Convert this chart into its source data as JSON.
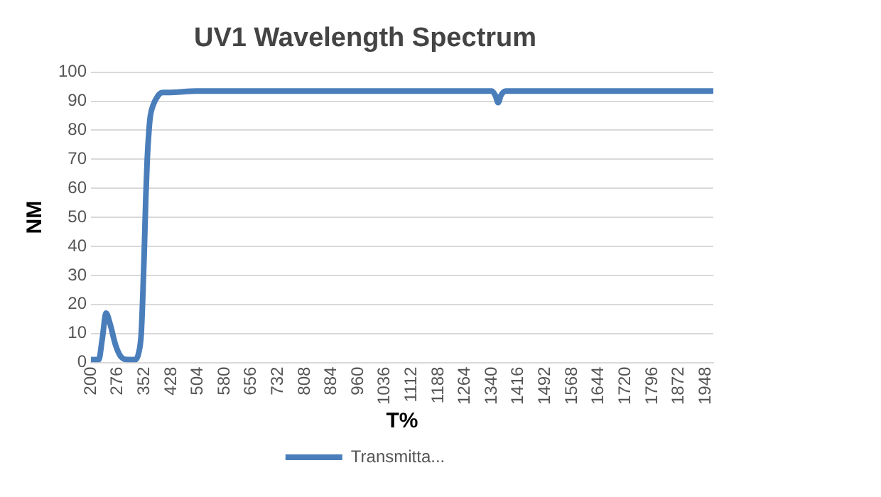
{
  "chart_data": {
    "type": "line",
    "title": "UV1 Wavelength Spectrum",
    "xlabel": "T%",
    "ylabel": "NM",
    "series": [
      {
        "name": "Transmitta...",
        "color": "#4a7ebb",
        "x": [
          200,
          222,
          232,
          243,
          255,
          270,
          285,
          304,
          326,
          335,
          343,
          348,
          352,
          356,
          360,
          365,
          369,
          378,
          386,
          395,
          404,
          420,
          500,
          700,
          900,
          1100,
          1300,
          1340,
          1350,
          1358,
          1366,
          1380,
          1450,
          1600,
          1800,
          1970
        ],
        "values": [
          1,
          1,
          8,
          17,
          13,
          6,
          2,
          1,
          1,
          3,
          10,
          25,
          40,
          57,
          70,
          80,
          85,
          89,
          91,
          92.5,
          93,
          93,
          93.5,
          93.5,
          93.5,
          93.5,
          93.5,
          93.5,
          92,
          89.5,
          92,
          93.5,
          93.5,
          93.5,
          93.5,
          93.5
        ]
      }
    ],
    "xlim": [
      200,
      1970
    ],
    "xticks": [
      200,
      276,
      352,
      428,
      504,
      580,
      656,
      732,
      808,
      884,
      960,
      1036,
      1112,
      1188,
      1264,
      1340,
      1416,
      1492,
      1568,
      1644,
      1720,
      1796,
      1872,
      1948
    ],
    "ylim": [
      0,
      100
    ],
    "yticks": [
      0,
      10,
      20,
      30,
      40,
      50,
      60,
      70,
      80,
      90,
      100
    ],
    "grid": "y",
    "legend": "bottom",
    "marker": "none",
    "line_style": "solid"
  }
}
